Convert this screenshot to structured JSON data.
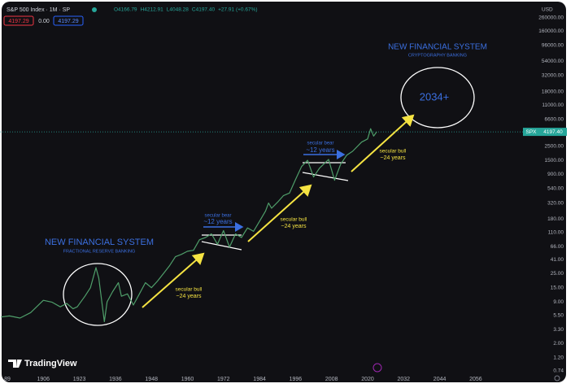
{
  "chart_data": {
    "type": "line",
    "title": "S&P 500 Index · 1M · SP",
    "ohlc": [
      "O4166.79",
      "H4212.91",
      "L4048.28",
      "C4197.40",
      "+27.91 (+0.67%)"
    ],
    "boxes": [
      "4197.29",
      "0.00",
      "4197.29"
    ],
    "currency": "USD",
    "watermark": "TradingView",
    "log_scale": true,
    "grid": false,
    "xlim": [
      1886,
      2071
    ],
    "ylim": [
      0.62,
      390000
    ],
    "xticks": [
      {
        "value": 1889,
        "label": "89"
      },
      1906,
      1923,
      1936,
      1948,
      1960,
      1972,
      1984,
      1996,
      2008,
      2020,
      2032,
      2044,
      2056
    ],
    "yticks": [
      {
        "value": 260000,
        "label": "260000.00"
      },
      {
        "value": 160000,
        "label": "160000.00"
      },
      {
        "value": 96000,
        "label": "96000.00"
      },
      {
        "value": 54000,
        "label": "54000.00"
      },
      {
        "value": 32000,
        "label": "32000.00"
      },
      {
        "value": 18000,
        "label": "18000.00"
      },
      {
        "value": 11000,
        "label": "11000.00"
      },
      {
        "value": 6600,
        "label": "6600.00"
      },
      {
        "value": 2500,
        "label": "2500.00"
      },
      {
        "value": 1500,
        "label": "1500.00"
      },
      {
        "value": 900,
        "label": "900.00"
      },
      {
        "value": 540,
        "label": "540.00"
      },
      {
        "value": 320,
        "label": "320.00"
      },
      {
        "value": 180,
        "label": "180.00"
      },
      {
        "value": 110,
        "label": "110.00"
      },
      {
        "value": 66,
        "label": "66.00"
      },
      {
        "value": 41,
        "label": "41.00"
      },
      {
        "value": 25,
        "label": "25.00"
      },
      {
        "value": 15,
        "label": "15.00"
      },
      {
        "value": 9,
        "label": "9.00"
      },
      {
        "value": 5.5,
        "label": "5.50"
      },
      {
        "value": 3.3,
        "label": "3.30"
      },
      {
        "value": 2,
        "label": "2.00"
      },
      {
        "value": 1.2,
        "label": "1.20"
      },
      {
        "value": 0.74,
        "label": "0.74"
      }
    ],
    "last_price": {
      "symbol": "SPX",
      "value": 4197.4,
      "label": "4197.40",
      "color": "#26a69a"
    },
    "series": [
      {
        "name": "S&P 500 Index",
        "color": "#4f9e6a",
        "x": [
          1886,
          1890,
          1895,
          1900,
          1906,
          1910,
          1914,
          1917,
          1920,
          1922,
          1925,
          1927,
          1929,
          1930,
          1932,
          1933,
          1935,
          1937,
          1938,
          1940,
          1942,
          1944,
          1946,
          1948,
          1950,
          1952,
          1954,
          1956,
          1958,
          1960,
          1962,
          1964,
          1966,
          1968,
          1970,
          1972,
          1974,
          1976,
          1978,
          1980,
          1982,
          1984,
          1986,
          1987,
          1988,
          1990,
          1992,
          1994,
          1996,
          1998,
          2000,
          2002,
          2004,
          2007,
          2009,
          2011,
          2013,
          2015,
          2018,
          2020,
          2021,
          2022,
          2023
        ],
        "values": [
          5.2,
          5.4,
          5.0,
          6.1,
          9.5,
          8.9,
          7.5,
          8.5,
          7.0,
          7.5,
          11,
          15,
          31,
          21,
          4.4,
          9,
          13,
          18,
          11,
          12,
          8,
          12,
          18,
          15,
          19,
          25,
          33,
          46,
          50,
          56,
          58,
          85,
          92,
          105,
          72,
          118,
          65,
          105,
          92,
          130,
          115,
          165,
          240,
          320,
          265,
          330,
          420,
          460,
          750,
          1200,
          1500,
          820,
          1130,
          1550,
          730,
          1300,
          1800,
          2080,
          2900,
          3250,
          4700,
          3600,
          4197.4
        ]
      }
    ],
    "annotations": [
      "NEW FINANCIAL SYSTEM",
      "FRACTIONAL RESERVE BANKING",
      "secular bull",
      "~24 years",
      "secular bear",
      "~12 years",
      "secular bull",
      "~24 years",
      "secular bear",
      "~12 years",
      "secular bull",
      "~24 years",
      "NEW FINANCIAL SYSTEM",
      "CRYPTOGRAPHY BANKING",
      "2034+"
    ]
  }
}
